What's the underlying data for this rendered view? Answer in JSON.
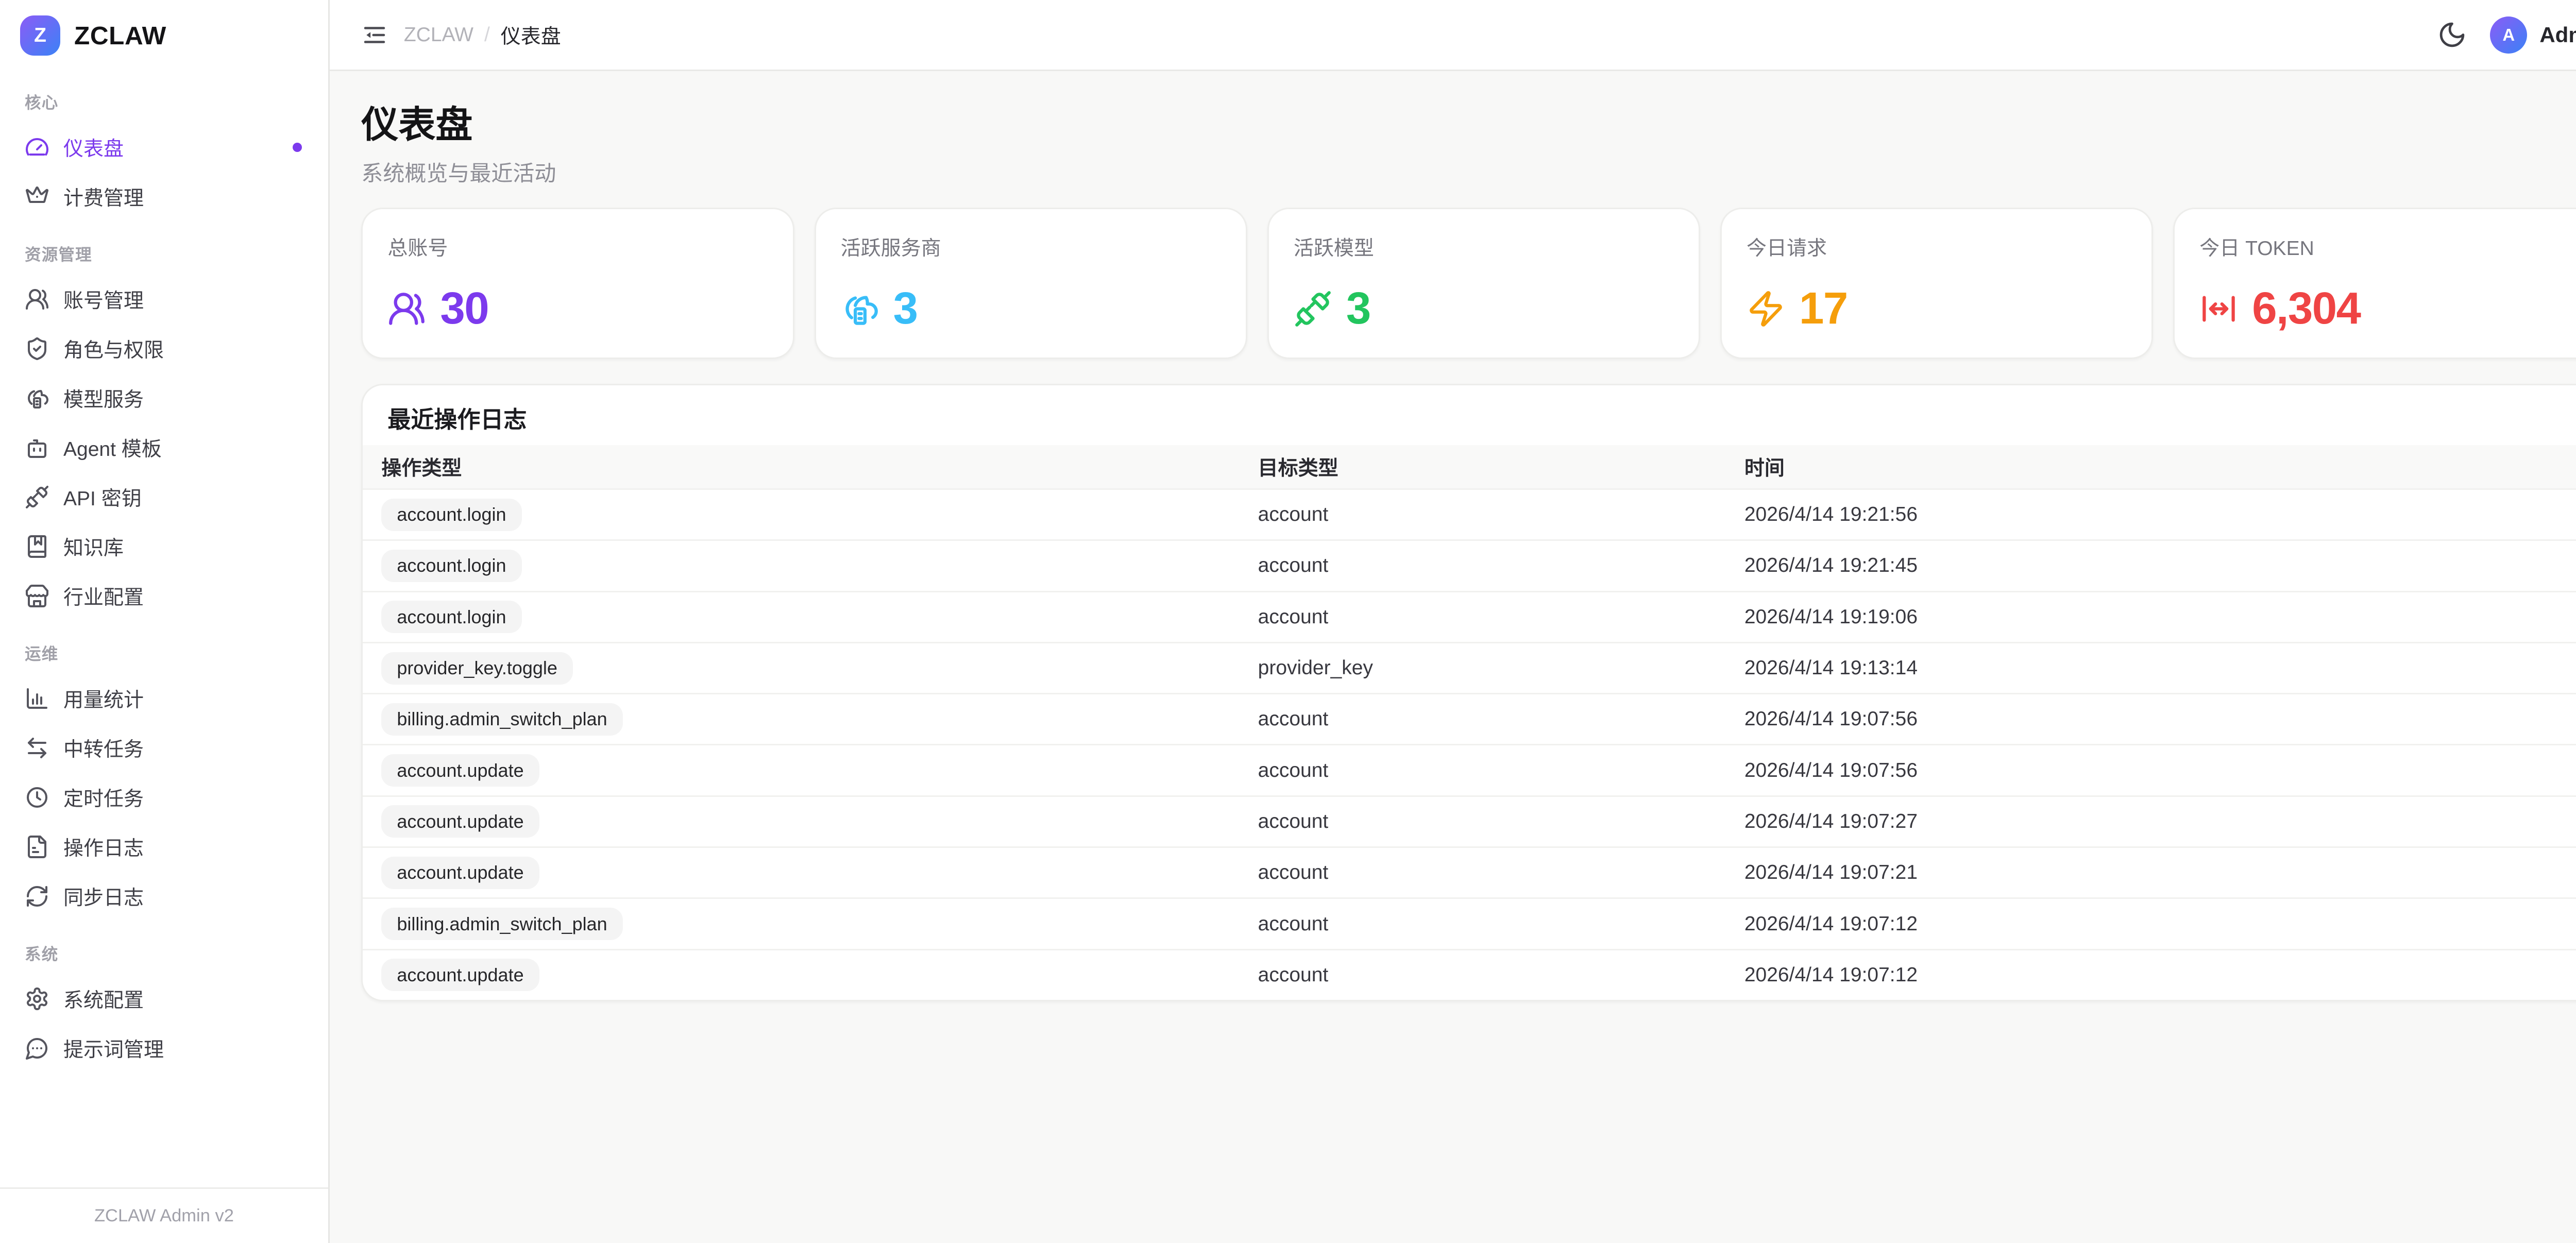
{
  "brand": {
    "logo_letter": "Z",
    "name": "ZCLAW"
  },
  "header": {
    "breadcrumb": {
      "root": "ZCLAW",
      "separator": "/",
      "current": "仪表盘"
    },
    "user": {
      "initial": "A",
      "name": "Admin"
    }
  },
  "sidebar": {
    "sections": [
      {
        "label": "核心",
        "items": [
          {
            "icon": "gauge",
            "label": "仪表盘",
            "active": true
          },
          {
            "icon": "crown",
            "label": "计费管理"
          }
        ]
      },
      {
        "label": "资源管理",
        "items": [
          {
            "icon": "users",
            "label": "账号管理"
          },
          {
            "icon": "shield-check",
            "label": "角色与权限"
          },
          {
            "icon": "cloud-server",
            "label": "模型服务"
          },
          {
            "icon": "bot",
            "label": "Agent 模板"
          },
          {
            "icon": "unplug",
            "label": "API 密钥"
          },
          {
            "icon": "book-marked",
            "label": "知识库"
          },
          {
            "icon": "store",
            "label": "行业配置"
          }
        ]
      },
      {
        "label": "运维",
        "items": [
          {
            "icon": "bar-chart",
            "label": "用量统计"
          },
          {
            "icon": "arrows-left-right",
            "label": "中转任务"
          },
          {
            "icon": "clock",
            "label": "定时任务"
          },
          {
            "icon": "file-text",
            "label": "操作日志"
          },
          {
            "icon": "refresh",
            "label": "同步日志"
          }
        ]
      },
      {
        "label": "系统",
        "items": [
          {
            "icon": "settings",
            "label": "系统配置"
          },
          {
            "icon": "message-dots",
            "label": "提示词管理"
          }
        ]
      }
    ],
    "footer": "ZCLAW Admin v2"
  },
  "page": {
    "title": "仪表盘",
    "subtitle": "系统概览与最近活动"
  },
  "stats": [
    {
      "label": "总账号",
      "value": "30",
      "icon": "users",
      "color": "#7c3aed"
    },
    {
      "label": "活跃服务商",
      "value": "3",
      "icon": "cloud-server",
      "color": "#38bdf8"
    },
    {
      "label": "活跃模型",
      "value": "3",
      "icon": "unplug",
      "color": "#22c55e"
    },
    {
      "label": "今日请求",
      "value": "17",
      "icon": "zap",
      "color": "#f59e0b"
    },
    {
      "label": "今日 TOKEN",
      "value": "6,304",
      "icon": "move-horizontal",
      "color": "#ef4444"
    }
  ],
  "table": {
    "title": "最近操作日志",
    "columns": [
      "操作类型",
      "目标类型",
      "时间"
    ],
    "rows": [
      {
        "action": "account.login",
        "target": "account",
        "time": "2026/4/14 19:21:56"
      },
      {
        "action": "account.login",
        "target": "account",
        "time": "2026/4/14 19:21:45"
      },
      {
        "action": "account.login",
        "target": "account",
        "time": "2026/4/14 19:19:06"
      },
      {
        "action": "provider_key.toggle",
        "target": "provider_key",
        "time": "2026/4/14 19:13:14"
      },
      {
        "action": "billing.admin_switch_plan",
        "target": "account",
        "time": "2026/4/14 19:07:56"
      },
      {
        "action": "account.update",
        "target": "account",
        "time": "2026/4/14 19:07:56"
      },
      {
        "action": "account.update",
        "target": "account",
        "time": "2026/4/14 19:07:27"
      },
      {
        "action": "account.update",
        "target": "account",
        "time": "2026/4/14 19:07:21"
      },
      {
        "action": "billing.admin_switch_plan",
        "target": "account",
        "time": "2026/4/14 19:07:12"
      },
      {
        "action": "account.update",
        "target": "account",
        "time": "2026/4/14 19:07:12"
      }
    ]
  }
}
